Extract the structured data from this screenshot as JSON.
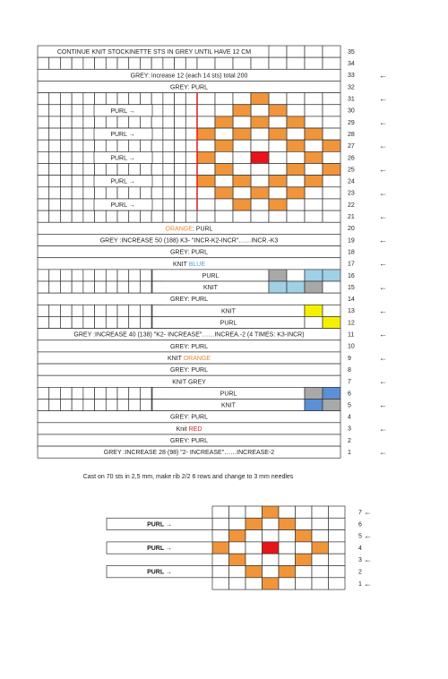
{
  "main_chart": {
    "rows": [
      {
        "number": 35,
        "label": [
          {
            "text": "CONTINUE KNIT STOCKINETTE STS IN GREY UNTIL HAVE 12 CM"
          }
        ]
      },
      {
        "number": 34
      },
      {
        "number": 33,
        "arrow": "←",
        "label": [
          {
            "text": "GREY: increase 12 (each 14 sts) total 200"
          }
        ]
      },
      {
        "number": 32,
        "label": [
          {
            "text": "GREY: PURL"
          }
        ]
      },
      {
        "number": 31,
        "arrow": "←"
      },
      {
        "number": 30,
        "label": [
          {
            "text": "PURL →"
          }
        ]
      },
      {
        "number": 29,
        "arrow": "←"
      },
      {
        "number": 28,
        "label": [
          {
            "text": "PURL →"
          }
        ]
      },
      {
        "number": 27,
        "arrow": "←"
      },
      {
        "number": 26,
        "label": [
          {
            "text": "PURL →"
          }
        ]
      },
      {
        "number": 25,
        "arrow": "←"
      },
      {
        "number": 24,
        "label": [
          {
            "text": "PURL →"
          }
        ]
      },
      {
        "number": 23,
        "arrow": "←"
      },
      {
        "number": 22,
        "label": [
          {
            "text": "PURL →"
          }
        ]
      },
      {
        "number": 21,
        "arrow": "←"
      },
      {
        "number": 20,
        "label": [
          {
            "text": "ORANGE",
            "color": "#e8892f"
          },
          {
            "text": ": PURL"
          }
        ]
      },
      {
        "number": 19,
        "arrow": "←",
        "label": [
          {
            "text": "GREY :INCREASE 50 (188)  K3- \"INCR-K2-INCR\"……INCR.-K3"
          }
        ]
      },
      {
        "number": 18,
        "label": [
          {
            "text": "GREY: PURL"
          }
        ]
      },
      {
        "number": 17,
        "arrow": "←",
        "label": [
          {
            "text": "KNIT "
          },
          {
            "text": "BLUE",
            "color": "#4a9fd0"
          }
        ]
      },
      {
        "number": 16,
        "label": [
          {
            "text": "PURL"
          }
        ]
      },
      {
        "number": 15,
        "arrow": "←",
        "label": [
          {
            "text": "KNIT"
          }
        ]
      },
      {
        "number": 14,
        "label": [
          {
            "text": "GREY: PURL"
          }
        ]
      },
      {
        "number": 13,
        "arrow": "←",
        "label": [
          {
            "text": "KNIT"
          }
        ]
      },
      {
        "number": 12,
        "label": [
          {
            "text": "PURL"
          }
        ]
      },
      {
        "number": 11,
        "arrow": "←",
        "label": [
          {
            "text": "GREY :INCREASE 40 (138)  \"K2- INCREASE\"……INCREA.-2 (4 TIMES: K3-INCR)"
          }
        ]
      },
      {
        "number": 10,
        "label": [
          {
            "text": "GREY: PURL"
          }
        ]
      },
      {
        "number": 9,
        "arrow": "←",
        "label": [
          {
            "text": "KNIT "
          },
          {
            "text": "ORANGE",
            "color": "#e8892f"
          }
        ]
      },
      {
        "number": 8,
        "label": [
          {
            "text": "GREY: PURL"
          }
        ]
      },
      {
        "number": 7,
        "arrow": "←",
        "label": [
          {
            "text": "KNIT GREY"
          }
        ]
      },
      {
        "number": 6,
        "label": [
          {
            "text": "PURL"
          }
        ]
      },
      {
        "number": 5,
        "arrow": "←",
        "label": [
          {
            "text": "KNIT"
          }
        ]
      },
      {
        "number": 4,
        "label": [
          {
            "text": "GREY: PURL"
          }
        ]
      },
      {
        "number": 3,
        "arrow": "←",
        "label": [
          {
            "text": "Knit "
          },
          {
            "text": "RED",
            "color": "#e02020"
          }
        ]
      },
      {
        "number": 2,
        "label": [
          {
            "text": "GREY: PURL"
          }
        ]
      },
      {
        "number": 1,
        "arrow": "←",
        "label": [
          {
            "text": "GREY :INCREASE 28 (98)  \"2- INCREASE\"……INCREASE-2"
          }
        ]
      }
    ]
  },
  "note": "Cast on 70 sts in 2,5 mm, make rib 2/2 6 rows and change to 3 mm needles",
  "small_chart": {
    "rows": [
      {
        "number": 7,
        "arrow": "←"
      },
      {
        "number": 6,
        "label": "PURL →"
      },
      {
        "number": 5,
        "arrow": "←"
      },
      {
        "number": 4,
        "label": "PURL →"
      },
      {
        "number": 3,
        "arrow": "←"
      },
      {
        "number": 2,
        "label": "PURL →"
      },
      {
        "number": 1,
        "arrow": "←"
      }
    ]
  }
}
